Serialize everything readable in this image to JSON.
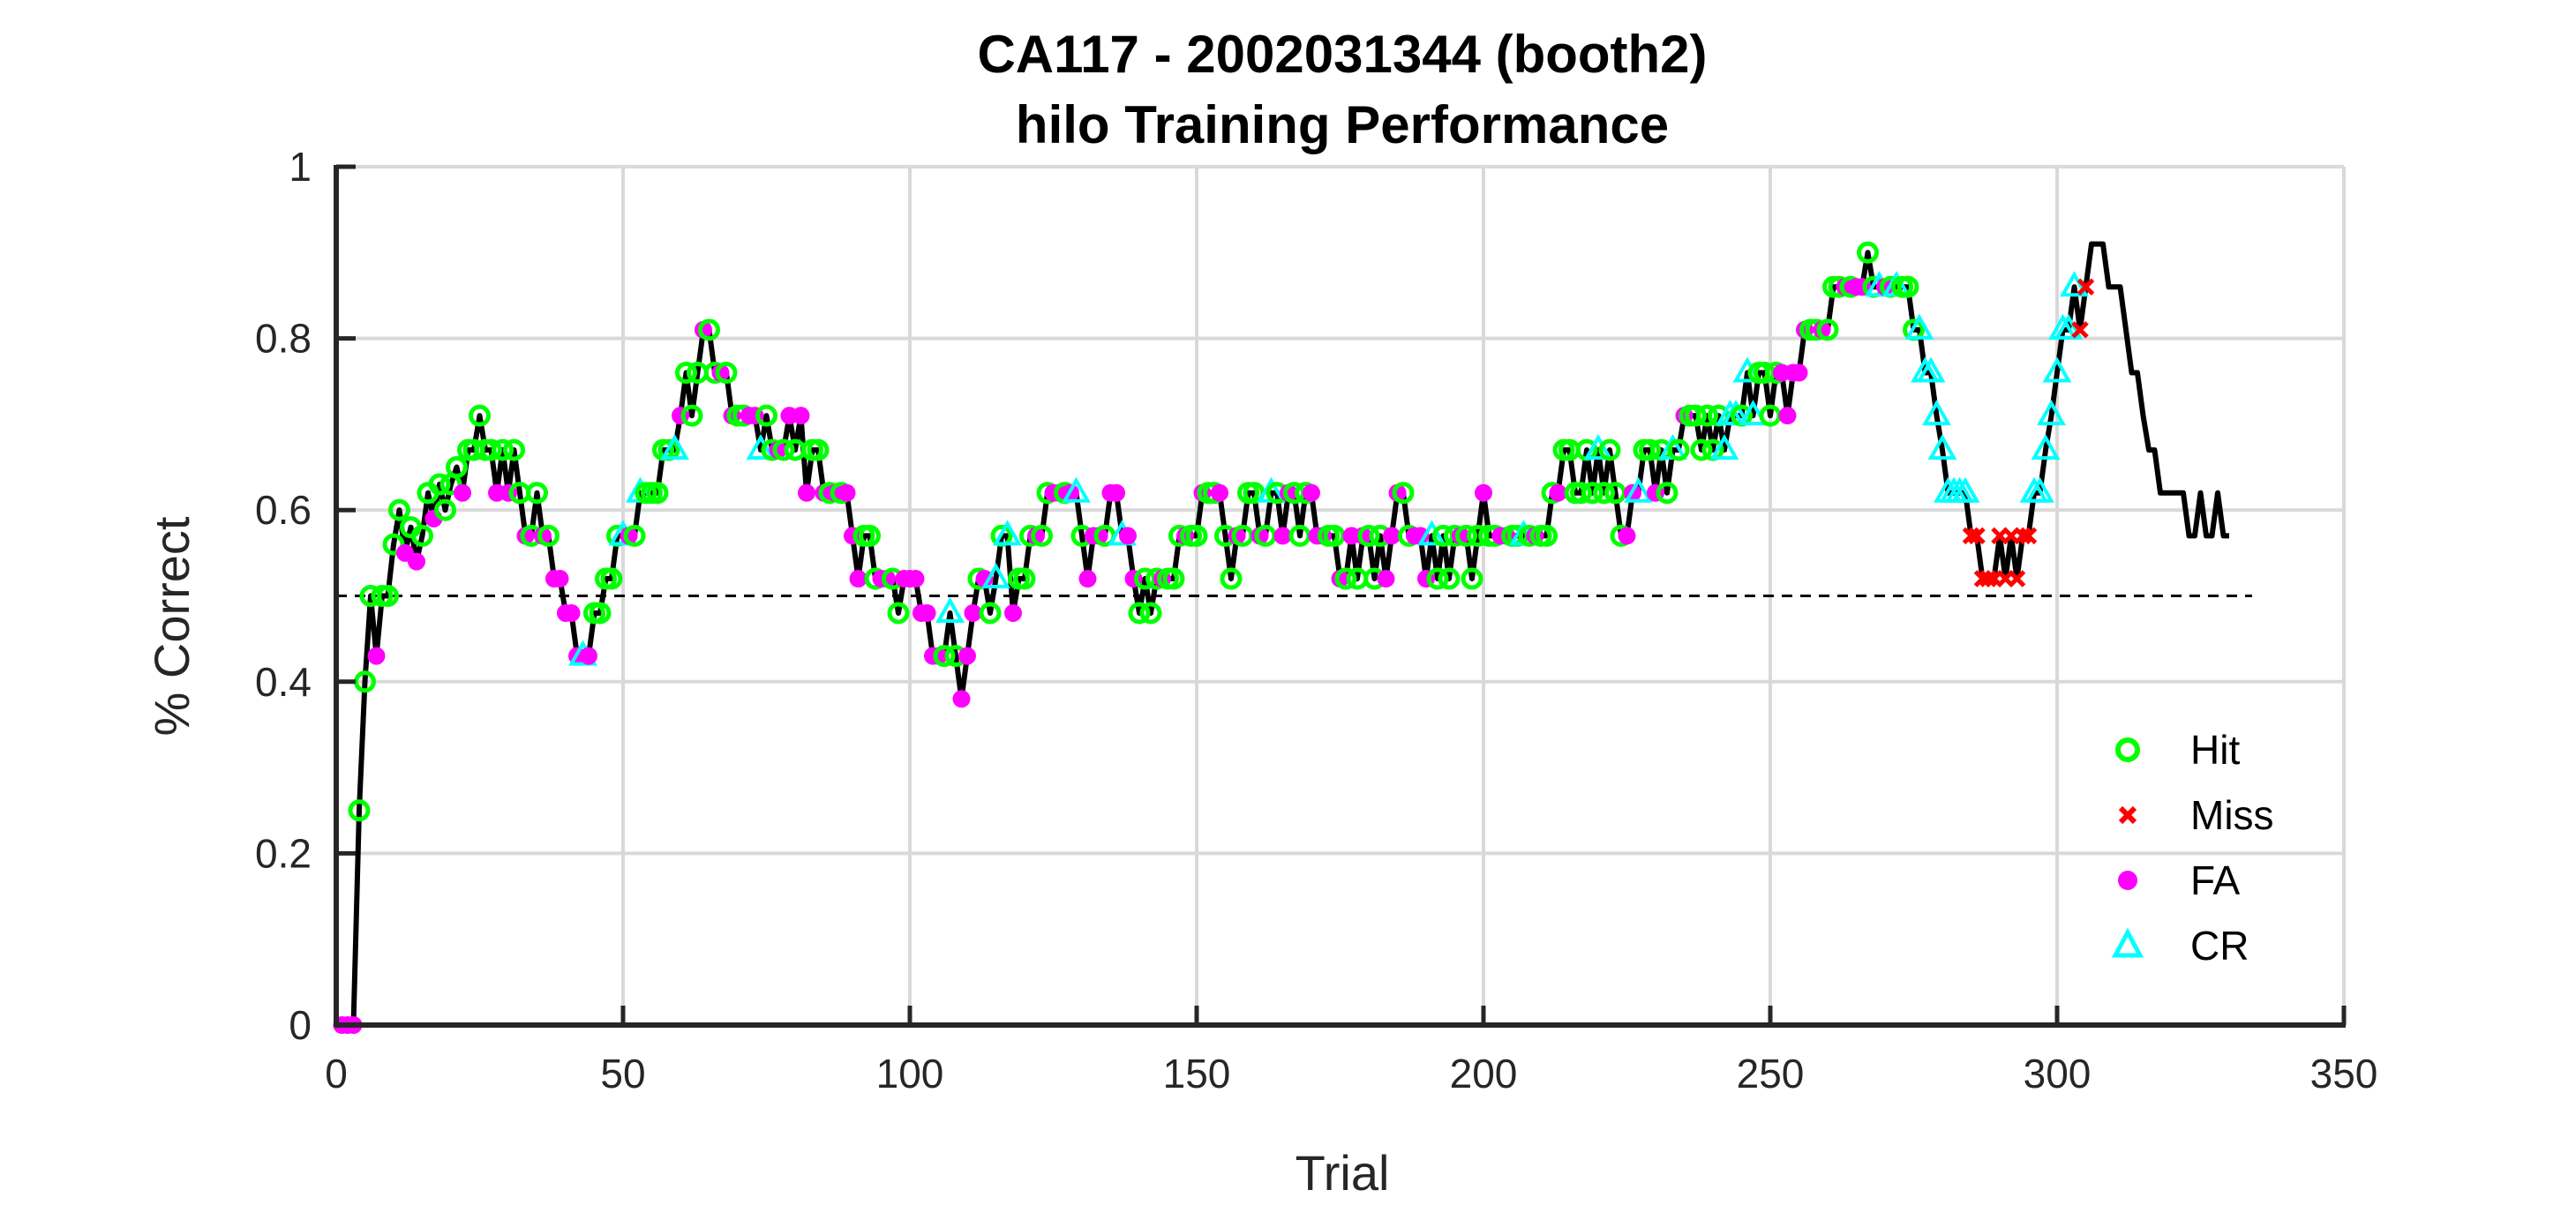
{
  "chart_data": {
    "type": "scatter",
    "title": "CA117 - 2002031344 (booth2)",
    "subtitle": "hilo Training Performance",
    "xlabel": "Trial",
    "ylabel": "% Correct",
    "xlim": [
      0,
      350
    ],
    "ylim": [
      0,
      1
    ],
    "xticks": [
      0,
      50,
      100,
      150,
      200,
      250,
      300,
      350
    ],
    "yticks": [
      0,
      0.2,
      0.4,
      0.6,
      0.8,
      1
    ],
    "grid": true,
    "legend_position": "bottom-right",
    "chance_level": 0.5,
    "chance_line_xlim": [
      0,
      334
    ],
    "colors": {
      "line": "#000000",
      "Hit": "#00ff00",
      "Miss": "#ff0000",
      "FA": "#ff00ff",
      "CR": "#00ffff",
      "grid": "#d9d9d9",
      "chance": "#000000"
    },
    "series": [
      {
        "name": "Hit",
        "marker": "circle"
      },
      {
        "name": "Miss",
        "marker": "x"
      },
      {
        "name": "FA",
        "marker": "dot"
      },
      {
        "name": "CR",
        "marker": "triangle"
      }
    ],
    "y": [
      0,
      0,
      0,
      0.25,
      0.4,
      0.5,
      0.43,
      0.5,
      0.5,
      0.56,
      0.6,
      0.55,
      0.58,
      0.54,
      0.57,
      0.62,
      0.59,
      0.63,
      0.6,
      0.63,
      0.65,
      0.62,
      0.67,
      0.67,
      0.71,
      0.67,
      0.67,
      0.62,
      0.67,
      0.62,
      0.67,
      0.62,
      0.57,
      0.57,
      0.62,
      0.57,
      0.57,
      0.52,
      0.52,
      0.48,
      0.48,
      0.43,
      0.43,
      0.43,
      0.48,
      0.48,
      0.52,
      0.52,
      0.57,
      0.57,
      0.57,
      0.57,
      0.62,
      0.62,
      0.62,
      0.62,
      0.67,
      0.67,
      0.67,
      0.71,
      0.76,
      0.71,
      0.76,
      0.81,
      0.81,
      0.76,
      0.76,
      0.76,
      0.71,
      0.71,
      0.71,
      0.71,
      0.71,
      0.67,
      0.71,
      0.67,
      0.67,
      0.67,
      0.71,
      0.67,
      0.71,
      0.62,
      0.67,
      0.67,
      0.62,
      0.62,
      0.62,
      0.62,
      0.62,
      0.57,
      0.52,
      0.57,
      0.57,
      0.52,
      0.52,
      0.52,
      0.52,
      0.48,
      0.52,
      0.52,
      0.52,
      0.48,
      0.48,
      0.43,
      0.43,
      0.43,
      0.48,
      0.43,
      0.38,
      0.43,
      0.48,
      0.52,
      0.52,
      0.48,
      0.52,
      0.57,
      0.57,
      0.48,
      0.52,
      0.52,
      0.57,
      0.57,
      0.57,
      0.62,
      0.62,
      0.62,
      0.62,
      0.62,
      0.62,
      0.57,
      0.52,
      0.57,
      0.57,
      0.57,
      0.62,
      0.62,
      0.57,
      0.57,
      0.52,
      0.48,
      0.52,
      0.48,
      0.52,
      0.52,
      0.52,
      0.52,
      0.57,
      0.57,
      0.57,
      0.57,
      0.62,
      0.62,
      0.62,
      0.62,
      0.57,
      0.52,
      0.57,
      0.57,
      0.62,
      0.62,
      0.57,
      0.57,
      0.62,
      0.62,
      0.57,
      0.62,
      0.62,
      0.57,
      0.62,
      0.62,
      0.57,
      0.57,
      0.57,
      0.57,
      0.52,
      0.52,
      0.57,
      0.52,
      0.57,
      0.57,
      0.52,
      0.57,
      0.52,
      0.57,
      0.62,
      0.62,
      0.57,
      0.57,
      0.57,
      0.52,
      0.57,
      0.52,
      0.57,
      0.52,
      0.57,
      0.57,
      0.57,
      0.52,
      0.57,
      0.62,
      0.57,
      0.57,
      0.57,
      0.57,
      0.57,
      0.57,
      0.57,
      0.57,
      0.57,
      0.57,
      0.57,
      0.62,
      0.62,
      0.67,
      0.67,
      0.62,
      0.62,
      0.67,
      0.62,
      0.67,
      0.62,
      0.67,
      0.62,
      0.57,
      0.57,
      0.62,
      0.62,
      0.67,
      0.67,
      0.62,
      0.67,
      0.62,
      0.67,
      0.67,
      0.71,
      0.71,
      0.71,
      0.67,
      0.71,
      0.67,
      0.71,
      0.67,
      0.71,
      0.71,
      0.71,
      0.76,
      0.71,
      0.76,
      0.76,
      0.71,
      0.76,
      0.76,
      0.71,
      0.76,
      0.76,
      0.81,
      0.81,
      0.81,
      0.81,
      0.81,
      0.86,
      0.86,
      0.86,
      0.86,
      0.86,
      0.86,
      0.9,
      0.86,
      0.86,
      0.86,
      0.86,
      0.86,
      0.86,
      0.86,
      0.81,
      0.81,
      0.76,
      0.76,
      0.71,
      0.67,
      0.62,
      0.62,
      0.62,
      0.62,
      0.57,
      0.57,
      0.52,
      0.52,
      0.52,
      0.57,
      0.52,
      0.57,
      0.52,
      0.57,
      0.57,
      0.62,
      0.62,
      0.67,
      0.71,
      0.76,
      0.81,
      0.81,
      0.86,
      0.81,
      0.86,
      0.91,
      0.91,
      0.91,
      0.86,
      0.86,
      0.86,
      0.81,
      0.76,
      0.76,
      0.71,
      0.67,
      0.67,
      0.62,
      0.62,
      0.62,
      0.62,
      0.62,
      0.57,
      0.57,
      0.62,
      0.57,
      0.57,
      0.62,
      0.57,
      0.57
    ],
    "outcome_codes": "FFFHHHFHHHHFHFHHFHHHHFHHHHHFHFHHFHHFHFFFFFCFHHHHHCFHCHHHHHCFHHHFHHFHFHHFFCHHFHFHFFHHFHFHFFFHHHFFHHFFFFFFFHCHFFFHFHCHCFHHHFHHFFHFCHFFFHFFCFFHHHHFHHHFHHFHHFHHFHHHFHCHFFHHHFFFHHFHFHFHHHFFFHHFFFCHHHHFHHHFHHFFHHCHFHHHFHHHHHHCHHHHFFCHHFHHCHFHHHHHHCCCHCCHHHHFFFFFHHFHHHFHFFHHCFHCHHHCCCCCCCCCMMMMMMMMMMMCCCCCCCCMM"
  }
}
